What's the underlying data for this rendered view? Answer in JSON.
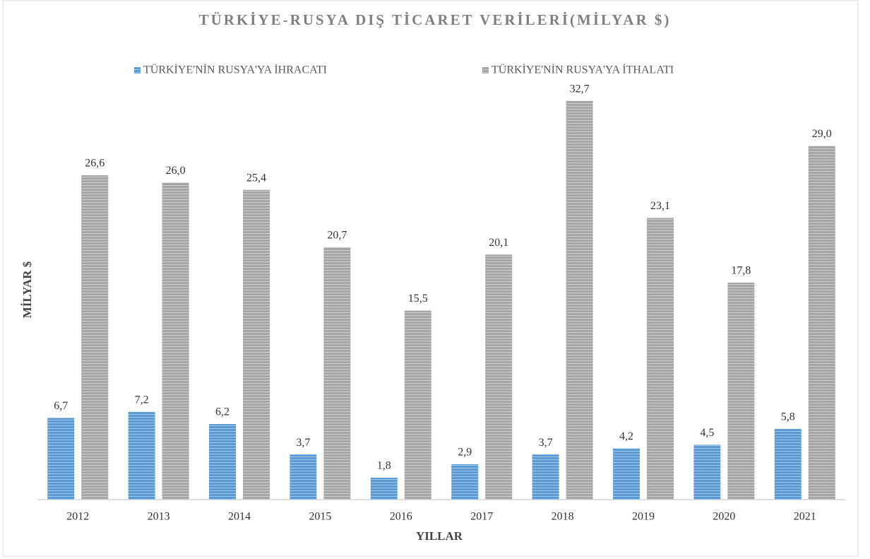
{
  "chart_data": {
    "type": "bar",
    "title": "TÜRKİYE-RUSYA DIŞ TİCARET VERİLERİ(MİLYAR $)",
    "x_label": "YILLAR",
    "y_label": "MİLYAR $",
    "categories": [
      "2012",
      "2013",
      "2014",
      "2015",
      "2016",
      "2017",
      "2018",
      "2019",
      "2020",
      "2021"
    ],
    "series": [
      {
        "name": "TÜRKİYE'NİN RUSYA'YA İHRACATI",
        "color": "#5b9bd5",
        "values": [
          6.7,
          7.2,
          6.2,
          3.7,
          1.8,
          2.9,
          3.7,
          4.2,
          4.5,
          5.8
        ],
        "value_labels": [
          "6,7",
          "7,2",
          "6,2",
          "3,7",
          "1,8",
          "2,9",
          "3,7",
          "4,2",
          "4,5",
          "5,8"
        ]
      },
      {
        "name": "TÜRKİYE'NİN RUSYA'YA İTHALATI",
        "color": "#a5a5a5",
        "values": [
          26.6,
          26.0,
          25.4,
          20.7,
          15.5,
          20.1,
          32.7,
          23.1,
          17.8,
          29.0
        ],
        "value_labels": [
          "26,6",
          "26,0",
          "25,4",
          "20,7",
          "15,5",
          "20,1",
          "32,7",
          "23,1",
          "17,8",
          "29,0"
        ]
      }
    ],
    "ylim": [
      0,
      35
    ],
    "legend": "top"
  }
}
